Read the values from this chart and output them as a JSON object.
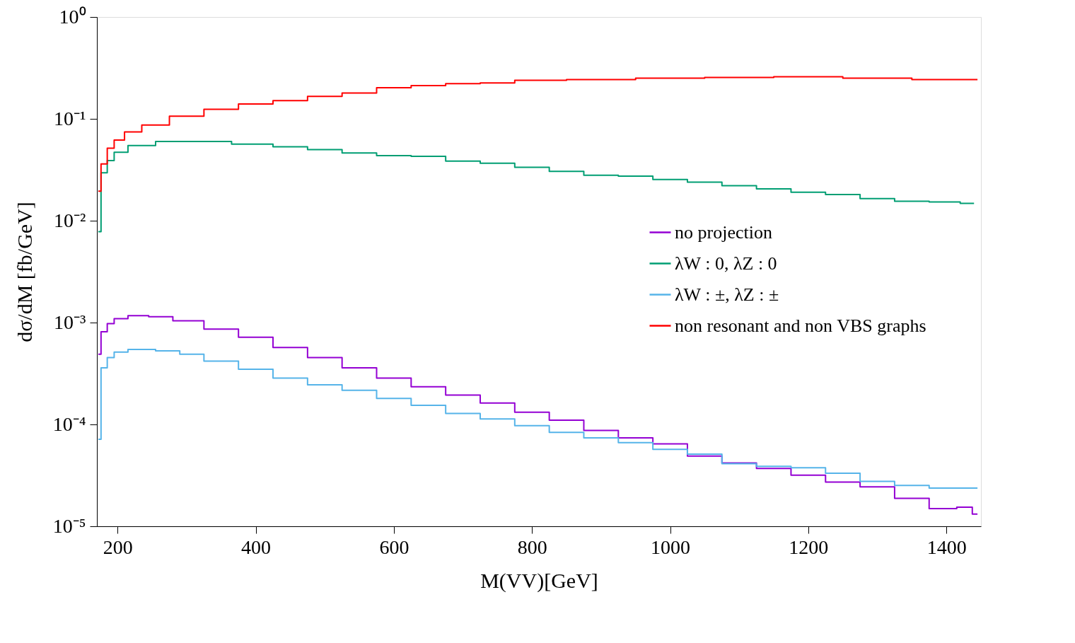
{
  "chart_data": {
    "type": "step",
    "xlabel": "M(VV)[GeV]",
    "ylabel": "dσ/dM [fb/GeV]",
    "xlim": [
      170,
      1450
    ],
    "xticks": [
      200,
      400,
      600,
      800,
      1000,
      1200,
      1400
    ],
    "ylim": [
      1e-05,
      1
    ],
    "log": "y",
    "yticks": [
      {
        "value": 1,
        "label": "10⁰"
      },
      {
        "value": 0.1,
        "label": "10⁻¹"
      },
      {
        "value": 0.01,
        "label": "10⁻²"
      },
      {
        "value": 0.001,
        "label": "10⁻³"
      },
      {
        "value": 0.0001,
        "label": "10⁻⁴"
      },
      {
        "value": 1e-05,
        "label": "10⁻⁵"
      }
    ],
    "grid": false,
    "legend": "right",
    "series": [
      {
        "name": "no projection",
        "color": "#9400d3",
        "x": [
          172,
          180,
          190,
          200,
          230,
          260,
          300,
          350,
          400,
          450,
          500,
          550,
          600,
          650,
          700,
          750,
          800,
          850,
          900,
          950,
          1000,
          1050,
          1100,
          1150,
          1200,
          1250,
          1300,
          1350,
          1400,
          1430,
          1445
        ],
        "values": [
          0.000489,
          0.000811,
          0.000975,
          0.00109,
          0.00117,
          0.00114,
          0.00104,
          0.000863,
          0.000718,
          0.00057,
          0.000453,
          0.000359,
          0.000285,
          0.000234,
          0.000194,
          0.000162,
          0.000132,
          0.00011,
          8.73e-05,
          7.38e-05,
          6.43e-05,
          4.88e-05,
          4.18e-05,
          3.69e-05,
          3.17e-05,
          2.72e-05,
          2.44e-05,
          1.88e-05,
          1.49e-05,
          1.54e-05,
          1.32e-05
        ]
      },
      {
        "name": "λW : 0, λZ : 0",
        "color": "#009e73",
        "x": [
          172,
          180,
          190,
          200,
          230,
          280,
          330,
          400,
          450,
          500,
          550,
          600,
          650,
          700,
          750,
          800,
          850,
          900,
          950,
          1000,
          1050,
          1100,
          1150,
          1200,
          1250,
          1300,
          1350,
          1400,
          1440
        ],
        "values": [
          0.0078,
          0.0296,
          0.039,
          0.047,
          0.0547,
          0.06,
          0.06,
          0.0565,
          0.0531,
          0.0499,
          0.0462,
          0.0435,
          0.0428,
          0.0385,
          0.0367,
          0.0335,
          0.0305,
          0.0279,
          0.0274,
          0.0254,
          0.0239,
          0.0221,
          0.0205,
          0.019,
          0.0181,
          0.0165,
          0.0155,
          0.0153,
          0.0148
        ]
      },
      {
        "name": "λW : ±, λZ : ±",
        "color": "#56b4e9",
        "x": [
          172,
          180,
          190,
          200,
          230,
          280,
          300,
          350,
          400,
          450,
          500,
          550,
          600,
          650,
          700,
          750,
          800,
          850,
          900,
          950,
          1000,
          1050,
          1100,
          1150,
          1200,
          1250,
          1300,
          1350,
          1400,
          1445
        ],
        "values": [
          7.15e-05,
          0.000359,
          0.000453,
          0.000512,
          0.000544,
          0.000527,
          0.000489,
          0.000419,
          0.000348,
          0.000285,
          0.000245,
          0.000216,
          0.00018,
          0.000154,
          0.000128,
          0.000113,
          9.73e-05,
          8.34e-05,
          7.38e-05,
          6.62e-05,
          5.68e-05,
          5.1e-05,
          4.11e-05,
          3.87e-05,
          3.75e-05,
          3.32e-05,
          2.76e-05,
          2.52e-05,
          2.37e-05,
          2.37e-05
        ]
      },
      {
        "name": "non resonant and non VBS graphs",
        "color": "#ff0000",
        "x": [
          172,
          180,
          190,
          200,
          220,
          250,
          300,
          350,
          400,
          450,
          500,
          550,
          600,
          650,
          700,
          750,
          800,
          900,
          1000,
          1100,
          1200,
          1300,
          1400,
          1445
        ],
        "values": [
          0.0195,
          0.0361,
          0.0515,
          0.0619,
          0.0744,
          0.0868,
          0.106,
          0.124,
          0.14,
          0.151,
          0.166,
          0.179,
          0.202,
          0.212,
          0.222,
          0.225,
          0.239,
          0.243,
          0.251,
          0.255,
          0.259,
          0.251,
          0.243,
          0.243
        ]
      }
    ]
  }
}
